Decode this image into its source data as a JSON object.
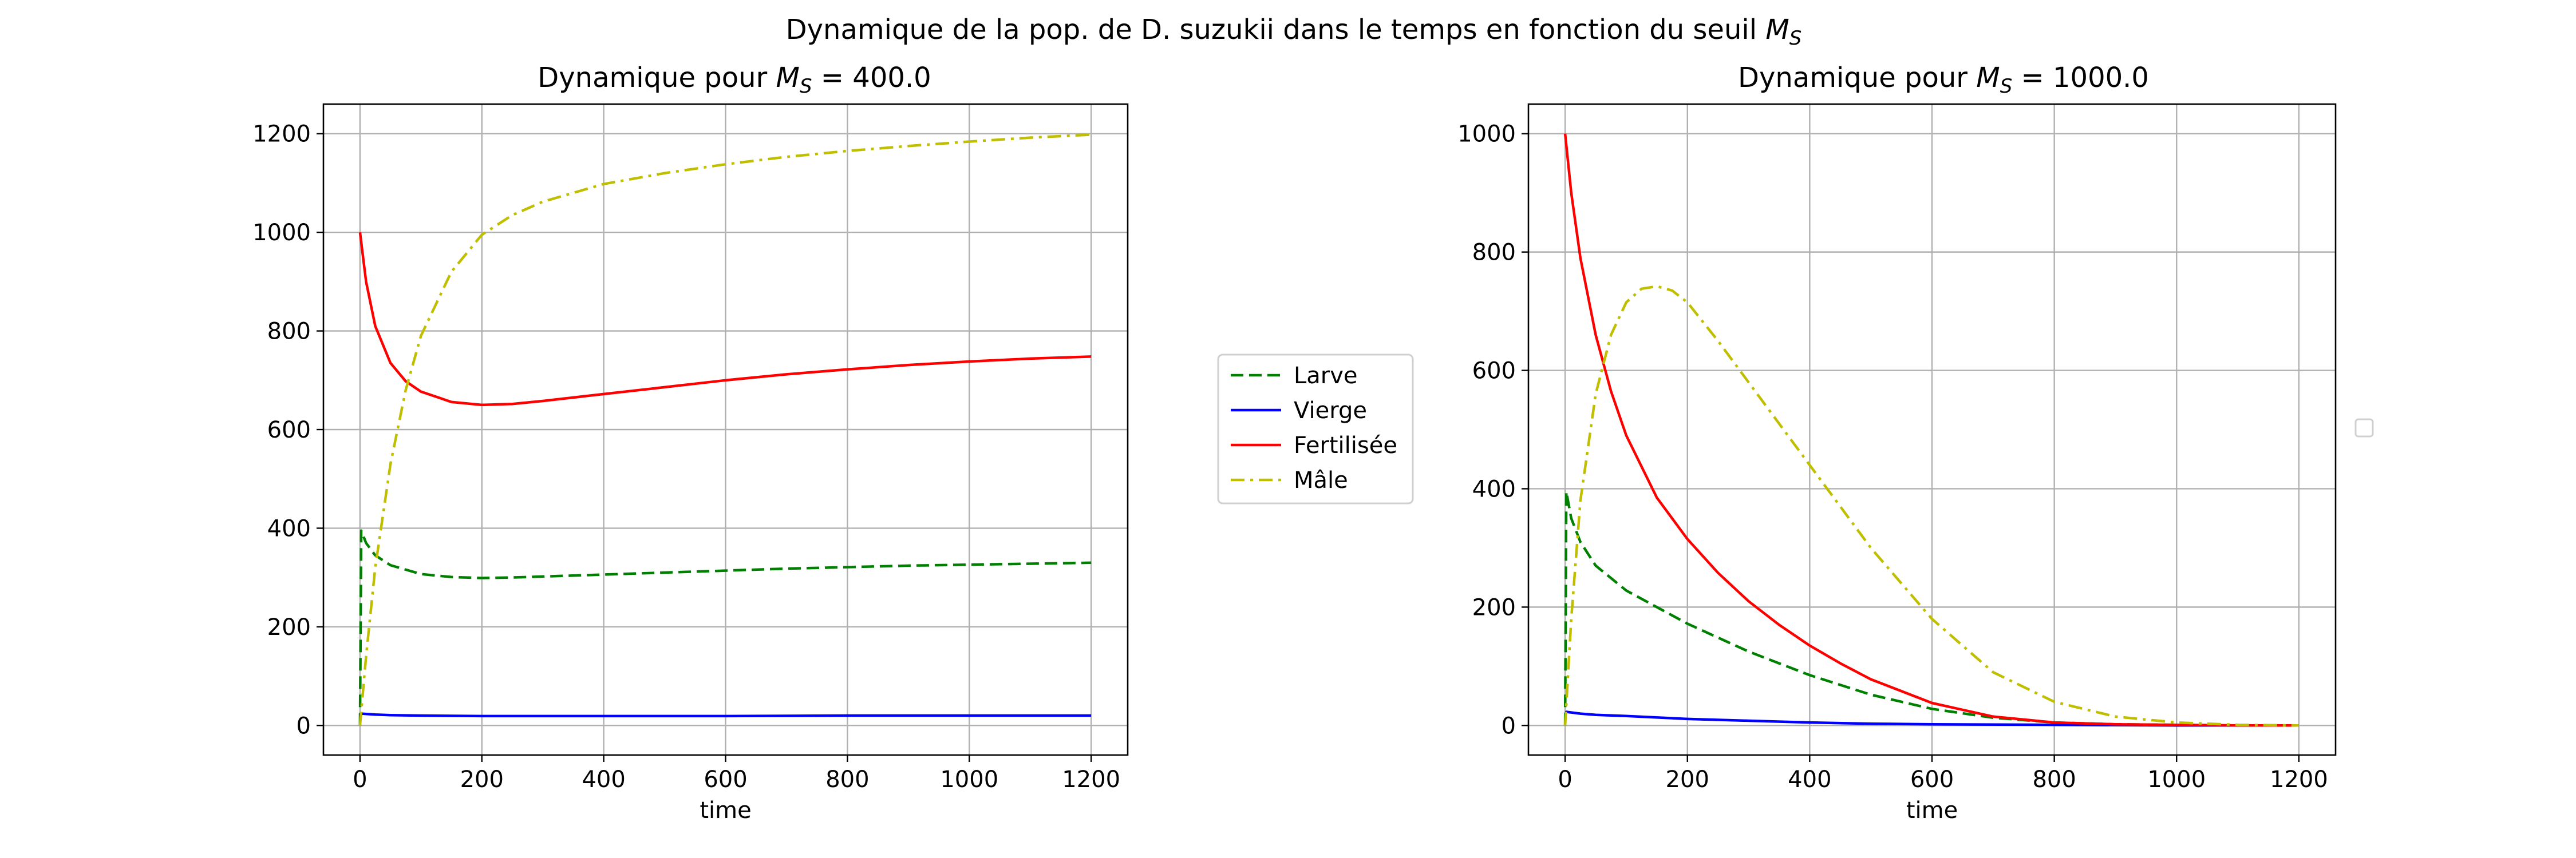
{
  "figure": {
    "suptitle_prefix": "Dynamique de la pop. de D. suzukii dans le temps en fonction du seuil ",
    "suptitle_symbol": "M",
    "suptitle_sub": "S"
  },
  "legend": {
    "entries": [
      {
        "label": "Larve",
        "color": "#008000",
        "dash": "dashed"
      },
      {
        "label": "Vierge",
        "color": "#0000ff",
        "dash": "solid"
      },
      {
        "label": "Fertilisée",
        "color": "#ff0000",
        "dash": "solid"
      },
      {
        "label": "Mâle",
        "color": "#bfbf00",
        "dash": "dashdot"
      }
    ]
  },
  "chart_data": [
    {
      "type": "line",
      "title_prefix": "Dynamique pour ",
      "title_symbol": "M",
      "title_sub": "S",
      "title_suffix": " = 400.0",
      "xlabel": "time",
      "ylabel": "",
      "xlim": [
        -60,
        1260
      ],
      "ylim": [
        -60,
        1260
      ],
      "xticks": [
        0,
        200,
        400,
        600,
        800,
        1000,
        1200
      ],
      "yticks": [
        0,
        200,
        400,
        600,
        800,
        1000,
        1200
      ],
      "grid": true,
      "series": [
        {
          "name": "Larve",
          "color": "#008000",
          "dash": "dashed",
          "x": [
            0,
            2,
            10,
            25,
            50,
            100,
            150,
            200,
            250,
            300,
            400,
            500,
            600,
            700,
            800,
            900,
            1000,
            1100,
            1200
          ],
          "y": [
            0,
            395,
            370,
            345,
            325,
            307,
            301,
            299,
            300,
            302,
            306,
            310,
            314,
            318,
            321,
            324,
            326,
            328,
            330
          ]
        },
        {
          "name": "Vierge",
          "color": "#0000ff",
          "dash": "solid",
          "x": [
            0,
            2,
            25,
            50,
            100,
            200,
            400,
            600,
            800,
            1000,
            1200
          ],
          "y": [
            20,
            24,
            22,
            21,
            20,
            19,
            19,
            19,
            20,
            20,
            20
          ]
        },
        {
          "name": "Fertilisée",
          "color": "#ff0000",
          "dash": "solid",
          "x": [
            0,
            10,
            25,
            50,
            75,
            100,
            150,
            200,
            250,
            300,
            400,
            500,
            600,
            700,
            800,
            900,
            1000,
            1100,
            1200
          ],
          "y": [
            1000,
            900,
            810,
            735,
            698,
            677,
            656,
            650,
            652,
            658,
            672,
            686,
            700,
            712,
            722,
            731,
            738,
            744,
            748
          ]
        },
        {
          "name": "Mâle",
          "color": "#bfbf00",
          "dash": "dashdot",
          "x": [
            0,
            10,
            25,
            50,
            75,
            100,
            150,
            200,
            250,
            300,
            400,
            500,
            600,
            700,
            800,
            900,
            1000,
            1100,
            1200
          ],
          "y": [
            0,
            140,
            320,
            530,
            680,
            790,
            920,
            995,
            1035,
            1062,
            1098,
            1120,
            1138,
            1153,
            1165,
            1175,
            1184,
            1192,
            1198
          ]
        }
      ]
    },
    {
      "type": "line",
      "title_prefix": "Dynamique pour ",
      "title_symbol": "M",
      "title_sub": "S",
      "title_suffix": " = 1000.0",
      "xlabel": "time",
      "ylabel": "",
      "xlim": [
        -60,
        1260
      ],
      "ylim": [
        -50,
        1050
      ],
      "xticks": [
        0,
        200,
        400,
        600,
        800,
        1000,
        1200
      ],
      "yticks": [
        0,
        200,
        400,
        600,
        800,
        1000
      ],
      "grid": true,
      "series": [
        {
          "name": "Larve",
          "color": "#008000",
          "dash": "dashed",
          "x": [
            0,
            2,
            10,
            25,
            50,
            100,
            150,
            200,
            300,
            400,
            500,
            600,
            700,
            800,
            900,
            1000,
            1100,
            1200
          ],
          "y": [
            0,
            395,
            350,
            310,
            270,
            228,
            200,
            172,
            125,
            85,
            52,
            28,
            13,
            5,
            2,
            1,
            0,
            0
          ]
        },
        {
          "name": "Vierge",
          "color": "#0000ff",
          "dash": "solid",
          "x": [
            0,
            2,
            25,
            50,
            100,
            200,
            300,
            400,
            500,
            600,
            800,
            1000,
            1200
          ],
          "y": [
            20,
            23,
            20,
            18,
            16,
            11,
            8,
            5,
            3,
            2,
            1,
            0,
            0
          ]
        },
        {
          "name": "Fertilisée",
          "color": "#ff0000",
          "dash": "solid",
          "x": [
            0,
            10,
            25,
            50,
            75,
            100,
            150,
            200,
            250,
            300,
            350,
            400,
            450,
            500,
            600,
            700,
            800,
            900,
            1000,
            1100,
            1200
          ],
          "y": [
            1000,
            900,
            790,
            660,
            565,
            490,
            385,
            315,
            258,
            210,
            170,
            135,
            105,
            78,
            38,
            15,
            5,
            2,
            1,
            0,
            0
          ]
        },
        {
          "name": "Mâle",
          "color": "#bfbf00",
          "dash": "dashdot",
          "x": [
            0,
            10,
            25,
            50,
            75,
            100,
            125,
            150,
            175,
            200,
            250,
            300,
            350,
            400,
            450,
            500,
            600,
            700,
            800,
            900,
            1000,
            1100,
            1200
          ],
          "y": [
            0,
            180,
            380,
            560,
            660,
            715,
            738,
            742,
            735,
            715,
            650,
            580,
            510,
            440,
            370,
            300,
            180,
            90,
            40,
            15,
            5,
            1,
            0
          ]
        }
      ]
    }
  ]
}
